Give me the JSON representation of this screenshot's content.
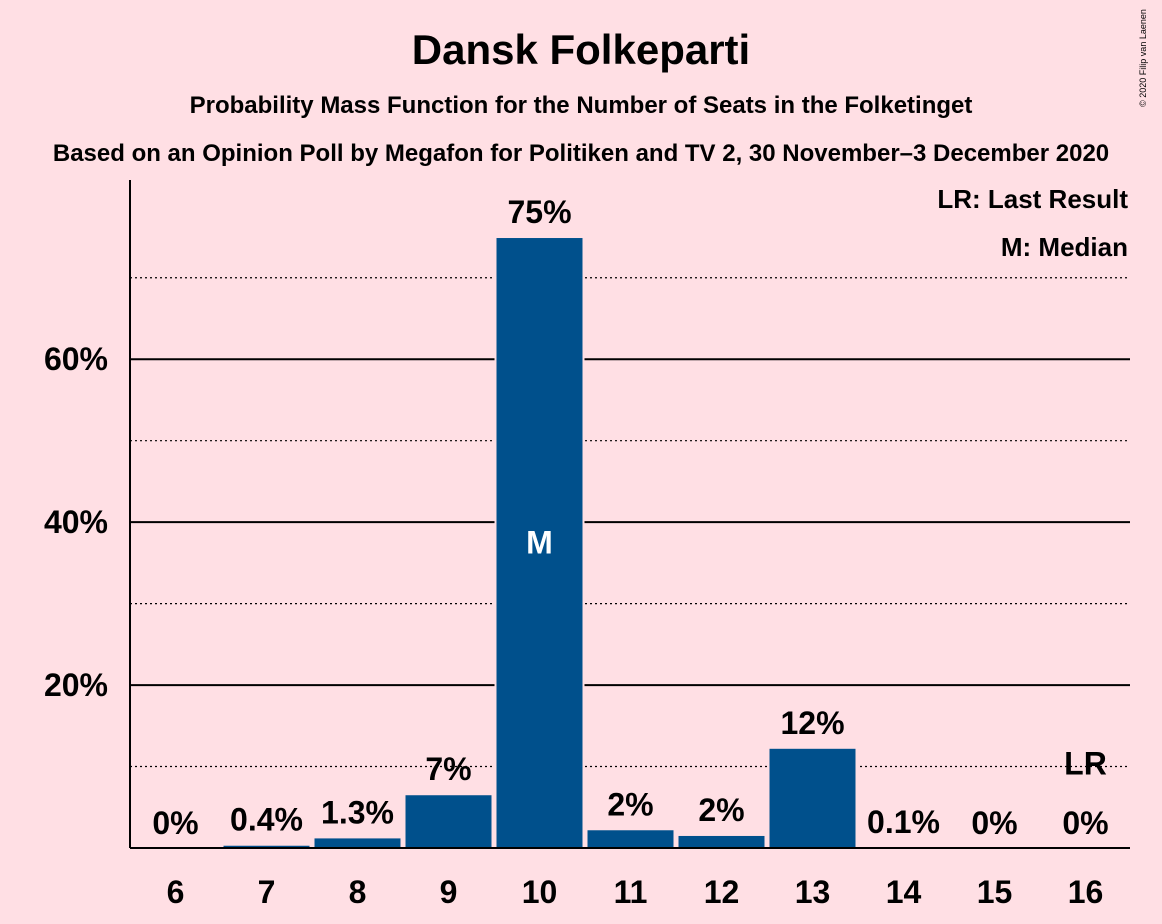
{
  "chart_data": {
    "type": "bar",
    "title": "Dansk Folkeparti",
    "subtitle": "Probability Mass Function for the Number of Seats in the Folketinget",
    "basis": "Based on an Opinion Poll by Megafon for Politiken and TV 2, 30 November–3 December 2020",
    "copyright": "© 2020 Filip van Laenen",
    "categories": [
      "6",
      "7",
      "8",
      "9",
      "10",
      "11",
      "12",
      "13",
      "14",
      "15",
      "16"
    ],
    "values": [
      0,
      0.4,
      1.3,
      6.6,
      75,
      2.3,
      1.6,
      12.3,
      0.1,
      0,
      0
    ],
    "value_labels": [
      "0%",
      "0.4%",
      "1.3%",
      "7%",
      "75%",
      "2%",
      "2%",
      "12%",
      "0.1%",
      "0%",
      "0%"
    ],
    "ylim": [
      0,
      82
    ],
    "yticks": [
      20,
      40,
      60
    ],
    "ytick_labels": [
      "20%",
      "40%",
      "60%"
    ],
    "minor_gridlines": [
      10,
      30,
      50,
      70
    ],
    "grid": true,
    "median_category": "10",
    "median_label": "M",
    "last_result_category": "16",
    "last_result_label": "LR",
    "legend": {
      "placement": "top-right",
      "entries": [
        "LR: Last Result",
        "M: Median"
      ]
    },
    "colors": {
      "background": "#ffdfe4",
      "bar": "#00508c",
      "text": "#1a1013",
      "grid": "#000000"
    }
  }
}
